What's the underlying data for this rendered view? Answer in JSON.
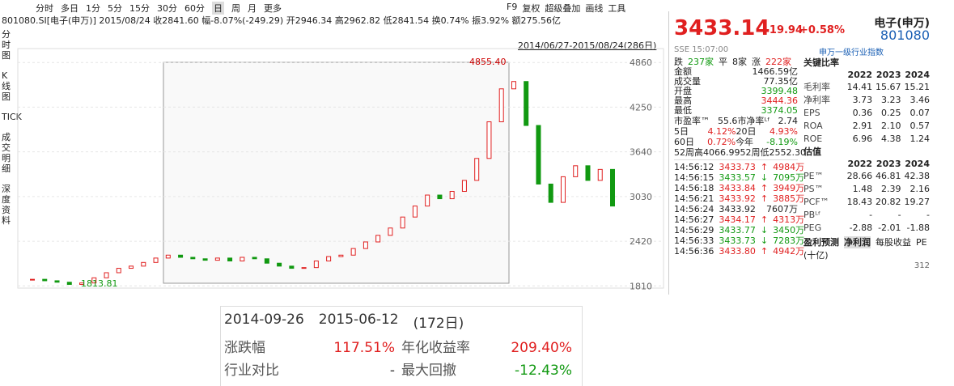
{
  "toolbar": {
    "tabs": [
      "分时",
      "多日",
      "1分",
      "5分",
      "15分",
      "30分",
      "60分",
      "日",
      "周",
      "月",
      "更多"
    ],
    "tools": [
      "F9",
      "复权",
      "超级叠加",
      "画线",
      "工具"
    ]
  },
  "sidebar": [
    "分时图",
    "K线图",
    "TICK",
    "成交明细",
    "深度资料"
  ],
  "info": "801080.SI[电子(申万)]   2015/08/24  收2841.60  幅-8.07%(-249.29)  开2946.34  高2962.82  低2841.54  换0.74%  振3.92%  额275.56亿",
  "range_label": "2014/06/27-2015/08/24(286日)",
  "chart": {
    "type": "candlestick",
    "up_color": "#e02020",
    "down_color": "#119911",
    "closes": [
      1900,
      1880,
      1860,
      1830,
      1850,
      1920,
      1990,
      2050,
      2080,
      2130,
      2190,
      2230,
      2200,
      2180,
      2160,
      2190,
      2150,
      2200,
      2180,
      2120,
      2080,
      2050,
      2060,
      2150,
      2210,
      2230,
      2320,
      2410,
      2500,
      2600,
      2750,
      2900,
      3050,
      3000,
      3100,
      3250,
      3550,
      4050,
      4500,
      4600,
      4000,
      3200,
      2950,
      3300,
      3450,
      3250,
      3400,
      2900
    ],
    "ylim": [
      1780,
      5050
    ],
    "yticks": [
      1810,
      2420,
      3030,
      3640,
      4250,
      4860
    ],
    "high_label": "4855.40",
    "low_label": "1813.81"
  },
  "quote": {
    "price": "3433.14",
    "change": "+19.94",
    "pct": "+0.58%",
    "name": "电子(申万)",
    "code": "801080",
    "time": "SSE 15:07:00",
    "index_type": "申万一级行业指数"
  },
  "breadth": [
    "跌",
    "237家",
    "平",
    "8家",
    "涨",
    "222家"
  ],
  "stats": [
    [
      "金额",
      "1466.59亿"
    ],
    [
      "成交量",
      "77.35亿"
    ],
    [
      "开盘",
      "3399.48"
    ],
    [
      "最高",
      "3444.36"
    ],
    [
      "最低",
      "3374.05"
    ]
  ],
  "valuation": [
    [
      "市盈率™",
      "55.6",
      "市净率ᴸᶠ",
      "2.74"
    ],
    [
      "5日",
      "4.12%",
      "20日",
      "4.93%"
    ],
    [
      "60日",
      "0.72%",
      "今年",
      "-8.19%"
    ],
    [
      "52周高",
      "4066.99",
      "52周低",
      "2552.30"
    ]
  ],
  "ticks": [
    [
      "14:56:12",
      "3433.73",
      "↑",
      "4984万"
    ],
    [
      "14:56:15",
      "3433.57",
      "↓",
      "7095万"
    ],
    [
      "14:56:18",
      "3433.84",
      "↑",
      "3949万"
    ],
    [
      "14:56:21",
      "3433.92",
      "↑",
      "3885万"
    ],
    [
      "14:56:24",
      "3433.92",
      "7607万"
    ],
    [
      "14:56:27",
      "3434.17",
      "↑",
      "4313万"
    ],
    [
      "14:56:29",
      "3433.77",
      "↓",
      "3450万"
    ],
    [
      "14:56:33",
      "3433.73",
      "↓",
      "7283万"
    ],
    [
      "14:56:36",
      "3433.80",
      "↑",
      "4942万"
    ]
  ],
  "ratios": {
    "title": "关键比率",
    "years": [
      "2022",
      "2023",
      "2024"
    ],
    "rows": [
      [
        "毛利率",
        "14.41",
        "15.67",
        "15.21"
      ],
      [
        "净利率",
        "3.73",
        "3.23",
        "3.46"
      ],
      [
        "EPS",
        "0.36",
        "0.25",
        "0.07"
      ],
      [
        "ROA",
        "2.91",
        "2.10",
        "0.57"
      ],
      [
        "ROE",
        "6.96",
        "4.38",
        "1.24"
      ]
    ]
  },
  "estimates": {
    "title": "估值",
    "years": [
      "2022",
      "2023",
      "2024"
    ],
    "rows": [
      [
        "PE™",
        "28.66",
        "46.81",
        "42.38"
      ],
      [
        "PS™",
        "1.48",
        "2.39",
        "2.16"
      ],
      [
        "PCF™",
        "18.43",
        "20.82",
        "19.27"
      ],
      [
        "PBᴸᶠ",
        "-",
        "-",
        "-"
      ],
      [
        "PEG",
        "-2.88",
        "-2.01",
        "-1.88"
      ]
    ]
  },
  "forecast": {
    "tabs": [
      "盈利预测",
      "净利润",
      "每股收益",
      "PE"
    ],
    "unit": "(十亿)",
    "value": "312"
  },
  "popup": {
    "start": "2014-09-26",
    "end": "2015-06-12",
    "days": "(172日)",
    "rows": [
      [
        "涨跌幅",
        "117.51%",
        "年化收益率",
        "209.40%"
      ],
      [
        "行业对比",
        "-",
        "最大回撤",
        "-12.43%"
      ]
    ]
  }
}
